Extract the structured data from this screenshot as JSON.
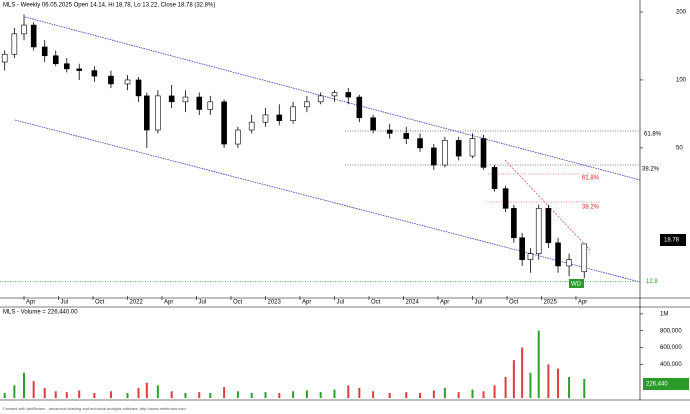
{
  "chart_data": {
    "type": "candlestick",
    "title": "MLS - Weekly 06.05.2025 Open 14.14, Hi 18.78, Lo 13.22, Close 18.78 (32.8%)",
    "volume_title": "MLS - Volume = 226,440.00",
    "footer": "Created with AmiBroker - advanced charting and technical analysis software. http://www.amibroker.com",
    "x": [
      2021.11,
      2021.18,
      2021.25,
      2021.32,
      2021.4,
      2021.48,
      2021.56,
      2021.65,
      2021.76,
      2021.88,
      2022.0,
      2022.08,
      2022.14,
      2022.22,
      2022.32,
      2022.42,
      2022.52,
      2022.6,
      2022.7,
      2022.8,
      2022.9,
      2023.0,
      2023.1,
      2023.2,
      2023.3,
      2023.4,
      2023.5,
      2023.6,
      2023.68,
      2023.78,
      2023.9,
      2024.02,
      2024.12,
      2024.22,
      2024.3,
      2024.4,
      2024.5,
      2024.58,
      2024.66,
      2024.74,
      2024.8,
      2024.86,
      2024.92,
      2024.98,
      2025.05,
      2025.12,
      2025.2,
      2025.31
    ],
    "open": [
      120,
      130,
      160,
      175,
      140,
      128,
      118,
      112,
      110,
      104,
      96,
      100,
      85,
      60,
      85,
      80,
      84,
      74,
      80,
      52,
      60,
      65,
      70,
      66,
      76,
      80,
      85,
      88,
      84,
      68,
      60,
      58,
      55,
      50,
      42,
      54,
      46,
      55,
      41,
      33,
      27,
      20,
      16,
      17,
      27,
      19,
      15,
      14.14
    ],
    "high": [
      135,
      170,
      195,
      180,
      150,
      135,
      125,
      118,
      115,
      110,
      105,
      103,
      88,
      90,
      95,
      90,
      88,
      85,
      82,
      62,
      70,
      75,
      78,
      80,
      85,
      88,
      90,
      92,
      86,
      70,
      64,
      62,
      58,
      52,
      56,
      56,
      58,
      57,
      42,
      34,
      28,
      21,
      18,
      28,
      28,
      20,
      17,
      18.78
    ],
    "low": [
      110,
      125,
      150,
      135,
      120,
      115,
      108,
      100,
      98,
      92,
      90,
      80,
      50,
      58,
      75,
      72,
      70,
      70,
      50,
      50,
      58,
      62,
      63,
      64,
      72,
      78,
      80,
      78,
      65,
      58,
      55,
      52,
      48,
      40,
      41,
      44,
      45,
      40,
      32,
      26,
      19,
      15,
      14,
      16,
      18,
      14,
      13.5,
      13.22
    ],
    "close": [
      130,
      160,
      175,
      140,
      128,
      118,
      112,
      110,
      104,
      96,
      100,
      85,
      60,
      85,
      80,
      84,
      74,
      80,
      52,
      60,
      65,
      70,
      66,
      76,
      80,
      85,
      88,
      84,
      68,
      60,
      58,
      55,
      50,
      42,
      54,
      46,
      55,
      41,
      33,
      27,
      20,
      16,
      17,
      27,
      19,
      15,
      16,
      18.78
    ],
    "volume": [
      60000,
      150000,
      300000,
      200000,
      120000,
      80000,
      70000,
      90000,
      60000,
      80000,
      60000,
      120000,
      180000,
      150000,
      80000,
      60000,
      70000,
      60000,
      130000,
      80000,
      60000,
      70000,
      60000,
      80000,
      90000,
      70000,
      100000,
      150000,
      120000,
      80000,
      60000,
      70000,
      60000,
      90000,
      120000,
      70000,
      100000,
      80000,
      150000,
      250000,
      450000,
      600000,
      300000,
      800000,
      400000,
      350000,
      250000,
      226440
    ],
    "last_volume_label": "226,440",
    "up_color": "#2ca02c",
    "down_color": "#e03c3c",
    "ylim": [
      10.6,
      226
    ],
    "log_scale": true,
    "yticks": [
      200,
      100,
      50
    ],
    "xlim": [
      2021.076,
      2025.714
    ],
    "xticks": [
      {
        "value": 2021.25,
        "label": "Apr"
      },
      {
        "value": 2021.5,
        "label": "Jul"
      },
      {
        "value": 2021.75,
        "label": "Oct"
      },
      {
        "value": 2022,
        "label": "2022"
      },
      {
        "value": 2022.25,
        "label": "Apr"
      },
      {
        "value": 2022.5,
        "label": "Jul"
      },
      {
        "value": 2022.75,
        "label": "Oct"
      },
      {
        "value": 2023,
        "label": "2023"
      },
      {
        "value": 2023.25,
        "label": "Apr"
      },
      {
        "value": 2023.5,
        "label": "Jul"
      },
      {
        "value": 2023.75,
        "label": "Oct"
      },
      {
        "value": 2024,
        "label": "2024"
      },
      {
        "value": 2024.25,
        "label": "Apr"
      },
      {
        "value": 2024.5,
        "label": "Jul"
      },
      {
        "value": 2024.75,
        "label": "Oct"
      },
      {
        "value": 2025,
        "label": "2025"
      },
      {
        "value": 2025.25,
        "label": "Apr"
      }
    ],
    "vlim": [
      0,
      1070000
    ],
    "vticks": [
      {
        "value": 1000000,
        "label": "1M"
      },
      {
        "value": 800000,
        "label": "800,000"
      },
      {
        "value": 600000,
        "label": "600,000"
      },
      {
        "value": 400000,
        "label": "400,000"
      }
    ],
    "support_level": 12.8,
    "annotations": {
      "fib_618": "61.8%",
      "fib_382": "38.2%",
      "fib_618_red": "61.8%",
      "fib_382_red": "38.2%",
      "marker": "WD"
    }
  }
}
